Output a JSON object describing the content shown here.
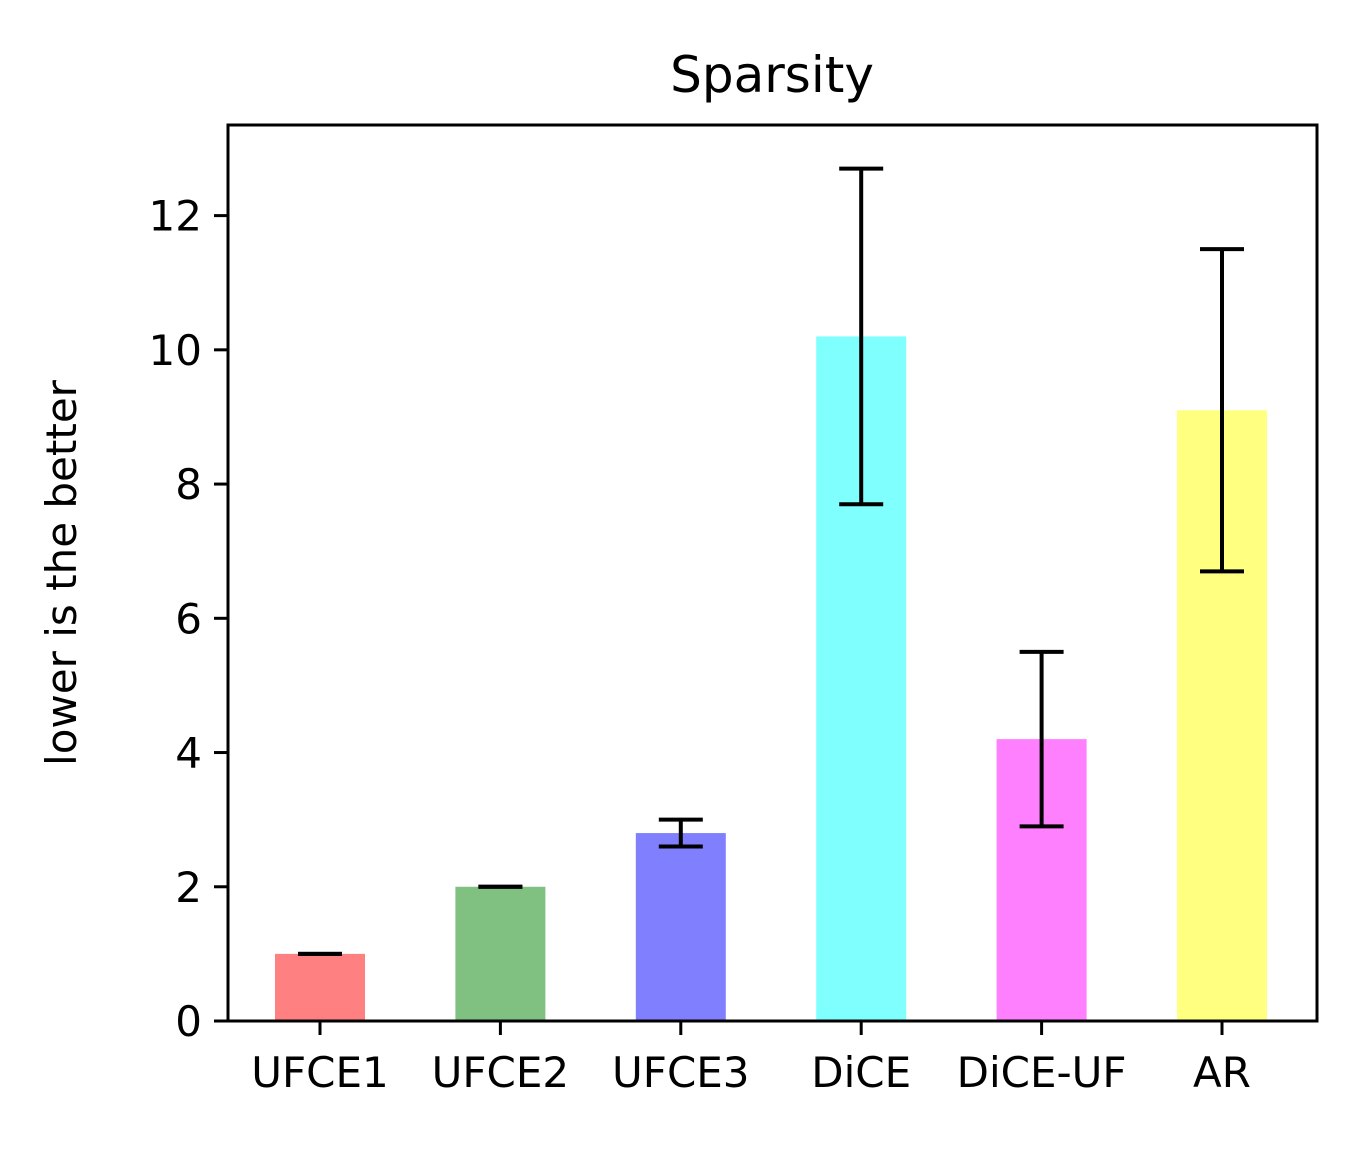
{
  "chart_data": {
    "type": "bar",
    "title": "Sparsity",
    "xlabel": "",
    "ylabel": "lower is the better",
    "categories": [
      "UFCE1",
      "UFCE2",
      "UFCE3",
      "DiCE",
      "DiCE-UF",
      "AR"
    ],
    "values": [
      1.0,
      2.0,
      2.8,
      10.2,
      4.2,
      9.1
    ],
    "error": [
      0.0,
      0.0,
      0.2,
      2.5,
      1.3,
      2.4
    ],
    "colors": [
      "#ff8080",
      "#80c080",
      "#8080ff",
      "#80ffff",
      "#ff80ff",
      "#ffff80"
    ],
    "ylim": [
      0,
      13.35
    ],
    "yticks": [
      0,
      2,
      4,
      6,
      8,
      10,
      12
    ],
    "grid": false,
    "legend": "none"
  }
}
